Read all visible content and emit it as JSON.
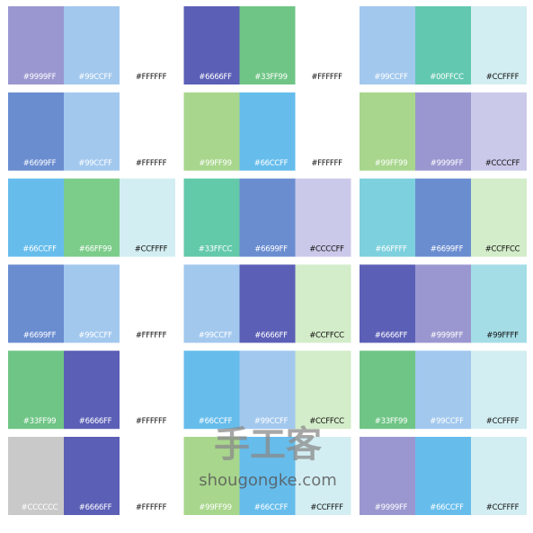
{
  "palettes": [
    {
      "swatches": [
        {
          "label": "#9999FF",
          "color": "#9a97d0"
        },
        {
          "label": "#99CCFF",
          "color": "#a2c8ee"
        },
        {
          "label": "#FFFFFF",
          "color": "#ffffff"
        }
      ]
    },
    {
      "swatches": [
        {
          "label": "#6666FF",
          "color": "#5b5fb6"
        },
        {
          "label": "#33FF99",
          "color": "#6fc585"
        },
        {
          "label": "#FFFFFF",
          "color": "#ffffff"
        }
      ]
    },
    {
      "swatches": [
        {
          "label": "#99CCFF",
          "color": "#a2c8ee"
        },
        {
          "label": "#00FFCC",
          "color": "#63c8b0"
        },
        {
          "label": "#CCFFFF",
          "color": "#d3eef2"
        }
      ]
    },
    {
      "swatches": [
        {
          "label": "#6699FF",
          "color": "#6a8dd0"
        },
        {
          "label": "#99CCFF",
          "color": "#a2c8ee"
        },
        {
          "label": "#FFFFFF",
          "color": "#ffffff"
        }
      ]
    },
    {
      "swatches": [
        {
          "label": "#99FF99",
          "color": "#a8d68c"
        },
        {
          "label": "#66CCFF",
          "color": "#66bdec"
        },
        {
          "label": "#FFFFFF",
          "color": "#ffffff"
        }
      ]
    },
    {
      "swatches": [
        {
          "label": "#99FF99",
          "color": "#a8d68c"
        },
        {
          "label": "#9999FF",
          "color": "#9a97d0"
        },
        {
          "label": "#CCCCFF",
          "color": "#cbc9ea"
        }
      ]
    },
    {
      "swatches": [
        {
          "label": "#66CCFF",
          "color": "#66bdec"
        },
        {
          "label": "#66FF99",
          "color": "#7ccc8a"
        },
        {
          "label": "#CCFFFF",
          "color": "#d3eef2"
        }
      ]
    },
    {
      "swatches": [
        {
          "label": "#33FFCC",
          "color": "#62c9a9"
        },
        {
          "label": "#6699FF",
          "color": "#6a8dd0"
        },
        {
          "label": "#CCCCFF",
          "color": "#cbc9ea"
        }
      ]
    },
    {
      "swatches": [
        {
          "label": "#66FFFF",
          "color": "#7dd0dd"
        },
        {
          "label": "#6699FF",
          "color": "#6a8dd0"
        },
        {
          "label": "#CCFFCC",
          "color": "#d3ecc9"
        }
      ]
    },
    {
      "swatches": [
        {
          "label": "#6699FF",
          "color": "#6a8dd0"
        },
        {
          "label": "#99CCFF",
          "color": "#a2c8ee"
        },
        {
          "label": "#FFFFFF",
          "color": "#ffffff"
        }
      ]
    },
    {
      "swatches": [
        {
          "label": "#99CCFF",
          "color": "#a2c8ee"
        },
        {
          "label": "#6666FF",
          "color": "#5b5fb6"
        },
        {
          "label": "#CCFFCC",
          "color": "#d3ecc9"
        }
      ]
    },
    {
      "swatches": [
        {
          "label": "#6666FF",
          "color": "#5b5fb6"
        },
        {
          "label": "#9999FF",
          "color": "#9a97d0"
        },
        {
          "label": "#99FFFF",
          "color": "#a4dde6"
        }
      ]
    },
    {
      "swatches": [
        {
          "label": "#33FF99",
          "color": "#6fc585"
        },
        {
          "label": "#6666FF",
          "color": "#5b5fb6"
        },
        {
          "label": "#FFFFFF",
          "color": "#ffffff"
        }
      ]
    },
    {
      "swatches": [
        {
          "label": "#66CCFF",
          "color": "#66bdec"
        },
        {
          "label": "#99CCFF",
          "color": "#a2c8ee"
        },
        {
          "label": "#CCFFCC",
          "color": "#d3ecc9"
        }
      ]
    },
    {
      "swatches": [
        {
          "label": "#33FF99",
          "color": "#6fc585"
        },
        {
          "label": "#99CCFF",
          "color": "#a2c8ee"
        },
        {
          "label": "#CCFFFF",
          "color": "#d3eef2"
        }
      ]
    },
    {
      "swatches": [
        {
          "label": "#CCCCCC",
          "color": "#c9c9c9"
        },
        {
          "label": "#6666FF",
          "color": "#5b5fb6"
        },
        {
          "label": "#FFFFFF",
          "color": "#ffffff"
        }
      ]
    },
    {
      "swatches": [
        {
          "label": "#99FF99",
          "color": "#a8d68c"
        },
        {
          "label": "#66CCFF",
          "color": "#66bdec"
        },
        {
          "label": "#CCFFFF",
          "color": "#d3eef2"
        }
      ]
    },
    {
      "swatches": [
        {
          "label": "#9999FF",
          "color": "#9a97d0"
        },
        {
          "label": "#66CCFF",
          "color": "#66bdec"
        },
        {
          "label": "#CCFFFF",
          "color": "#d3eef2"
        }
      ]
    }
  ],
  "watermark": {
    "title": "手工客",
    "url": "shougongke.com"
  }
}
